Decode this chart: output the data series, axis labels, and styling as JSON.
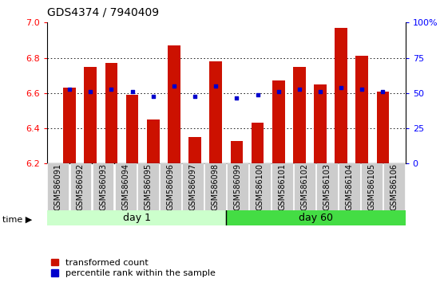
{
  "title": "GDS4374 / 7940409",
  "samples": [
    "GSM586091",
    "GSM586092",
    "GSM586093",
    "GSM586094",
    "GSM586095",
    "GSM586096",
    "GSM586097",
    "GSM586098",
    "GSM586099",
    "GSM586100",
    "GSM586101",
    "GSM586102",
    "GSM586103",
    "GSM586104",
    "GSM586105",
    "GSM586106"
  ],
  "bar_values": [
    6.63,
    6.75,
    6.77,
    6.59,
    6.45,
    6.87,
    6.35,
    6.78,
    6.33,
    6.43,
    6.67,
    6.75,
    6.65,
    6.97,
    6.81,
    6.61
  ],
  "blue_dot_values": [
    6.62,
    6.61,
    6.62,
    6.61,
    6.58,
    6.64,
    6.58,
    6.64,
    6.57,
    6.59,
    6.61,
    6.62,
    6.61,
    6.63,
    6.62,
    6.61
  ],
  "bar_bottom": 6.2,
  "ylim_left": [
    6.2,
    7.0
  ],
  "ylim_right": [
    0,
    100
  ],
  "right_ticks": [
    0,
    25,
    50,
    75,
    100
  ],
  "right_tick_labels": [
    "0",
    "25",
    "50",
    "75",
    "100%"
  ],
  "left_ticks": [
    6.2,
    6.4,
    6.6,
    6.8,
    7.0
  ],
  "day1_label": "day 1",
  "day60_label": "day 60",
  "day1_color": "#ccffcc",
  "day60_color": "#44dd44",
  "bar_color": "#cc1100",
  "dot_color": "#0000cc",
  "bar_width": 0.6,
  "legend_red_label": "transformed count",
  "legend_blue_label": "percentile rank within the sample",
  "plot_bg": "#ffffff",
  "tick_label_fontsize": 7,
  "title_fontsize": 10
}
